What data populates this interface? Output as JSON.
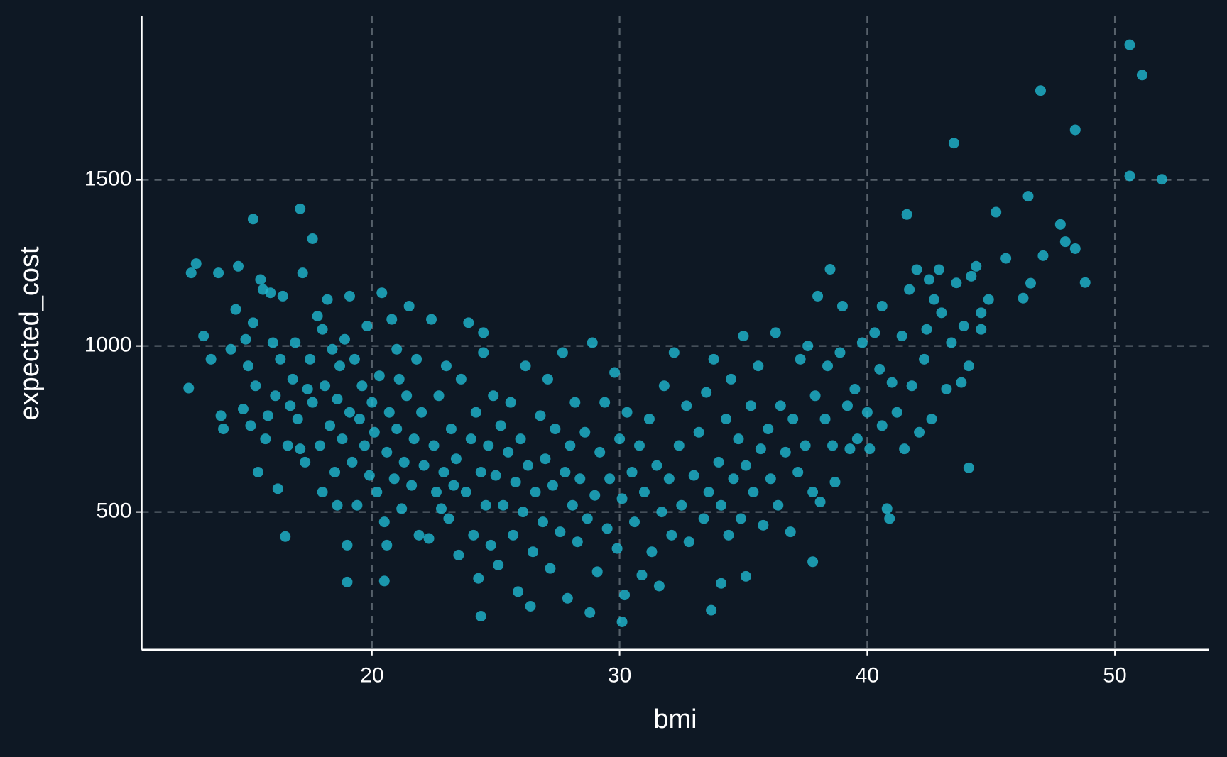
{
  "chart_data": {
    "type": "scatter",
    "x_label": "bmi",
    "y_label": "expected_cost",
    "color": "#1fb8d0",
    "grid": true,
    "xlim": [
      10.7,
      53.8
    ],
    "ylim": [
      85,
      1995
    ],
    "xticks": [
      20,
      30,
      40,
      50
    ],
    "yticks": [
      500,
      1000,
      1500
    ],
    "x": [
      50.6,
      51.1,
      47.0,
      48.4,
      43.5,
      50.6,
      51.9,
      46.5,
      41.6,
      45.2,
      47.8,
      48.0,
      48.4,
      47.1,
      45.6,
      46.6,
      48.8,
      46.3,
      44.1,
      17.1,
      15.2,
      17.6,
      12.9,
      12.7,
      12.6,
      16.5,
      19.0,
      20.5,
      24.4,
      26.4,
      30.1,
      28.8,
      33.7,
      31.6,
      34.1,
      37.8,
      35.1,
      38.5,
      13.2,
      13.5,
      13.9,
      14.0,
      14.3,
      14.5,
      14.6,
      14.8,
      15.0,
      15.2,
      15.3,
      15.4,
      15.5,
      15.7,
      15.9,
      16.0,
      16.1,
      16.2,
      16.3,
      16.4,
      15.1,
      14.9,
      15.6,
      15.8,
      13.8,
      16.6,
      16.8,
      16.9,
      17.0,
      17.2,
      17.3,
      17.5,
      17.6,
      17.8,
      17.9,
      18.0,
      18.1,
      18.2,
      18.3,
      18.4,
      18.5,
      18.6,
      18.7,
      18.8,
      18.9,
      17.4,
      16.7,
      18.0,
      17.1,
      18.6,
      19.0,
      19.1,
      19.2,
      19.3,
      19.4,
      19.5,
      19.6,
      19.7,
      19.8,
      19.9,
      20.0,
      20.1,
      20.2,
      20.3,
      20.4,
      20.5,
      20.6,
      20.7,
      20.8,
      20.9,
      21.0,
      21.1,
      21.2,
      21.3,
      21.4,
      21.5,
      21.6,
      21.7,
      21.8,
      21.9,
      19.1,
      20.6,
      21.0,
      22.0,
      22.1,
      22.3,
      22.4,
      22.5,
      22.6,
      22.7,
      22.9,
      23.0,
      23.1,
      23.2,
      23.4,
      23.5,
      23.6,
      23.8,
      23.9,
      24.0,
      24.1,
      24.2,
      24.3,
      24.4,
      24.5,
      24.6,
      24.7,
      24.8,
      24.9,
      23.3,
      22.8,
      24.5,
      25.0,
      25.1,
      25.2,
      25.3,
      25.5,
      25.6,
      25.7,
      25.8,
      25.9,
      26.0,
      26.1,
      26.2,
      26.3,
      26.5,
      26.6,
      26.8,
      26.9,
      27.0,
      27.1,
      27.2,
      27.3,
      27.4,
      27.6,
      27.7,
      27.8,
      27.9,
      28.0,
      28.1,
      28.2,
      28.3,
      28.4,
      28.6,
      28.7,
      28.9,
      29.0,
      29.1,
      29.2,
      29.4,
      29.5,
      29.6,
      29.8,
      29.9,
      30.0,
      30.1,
      30.2,
      30.3,
      30.5,
      30.6,
      30.8,
      30.9,
      31.0,
      31.2,
      31.3,
      31.5,
      31.7,
      31.8,
      32.0,
      32.1,
      32.2,
      32.4,
      32.5,
      32.7,
      32.8,
      33.0,
      33.2,
      33.4,
      33.5,
      33.6,
      33.8,
      34.0,
      34.1,
      34.3,
      34.4,
      34.5,
      34.6,
      34.8,
      34.9,
      35.0,
      35.1,
      35.3,
      35.4,
      35.6,
      35.7,
      35.8,
      36.0,
      36.1,
      36.3,
      36.4,
      36.5,
      36.7,
      36.9,
      37.0,
      37.2,
      37.3,
      37.5,
      37.6,
      37.8,
      37.9,
      38.0,
      38.1,
      38.3,
      38.4,
      38.6,
      38.7,
      38.9,
      39.0,
      39.2,
      39.3,
      39.5,
      39.6,
      39.8,
      40.0,
      40.1,
      40.3,
      40.5,
      40.6,
      40.8,
      40.9,
      41.0,
      40.6,
      41.2,
      41.4,
      41.5,
      41.7,
      41.8,
      42.0,
      42.1,
      42.3,
      42.4,
      42.6,
      42.7,
      42.9,
      43.0,
      43.2,
      43.4,
      43.6,
      43.8,
      43.9,
      44.1,
      44.2,
      44.4,
      44.6,
      44.9,
      44.6,
      42.5
    ],
    "values": [
      1907,
      1816,
      1769,
      1651,
      1611,
      1512,
      1502,
      1451,
      1396,
      1403,
      1366,
      1314,
      1293,
      1272,
      1264,
      1189,
      1191,
      1144,
      633,
      1413,
      1382,
      1323,
      1248,
      1220,
      873,
      426,
      289,
      292,
      186,
      216,
      169,
      197,
      204,
      277,
      285,
      350,
      306,
      1231,
      1030,
      960,
      790,
      750,
      990,
      1110,
      1240,
      810,
      940,
      1070,
      880,
      620,
      1200,
      720,
      1160,
      1010,
      850,
      570,
      960,
      1150,
      760,
      1020,
      1170,
      790,
      1220,
      700,
      900,
      1010,
      780,
      1220,
      650,
      960,
      830,
      1090,
      700,
      560,
      880,
      1140,
      760,
      990,
      620,
      840,
      940,
      720,
      1020,
      870,
      820,
      1050,
      690,
      520,
      400,
      800,
      650,
      960,
      520,
      780,
      880,
      700,
      1060,
      610,
      830,
      740,
      560,
      910,
      1160,
      470,
      680,
      800,
      1080,
      600,
      750,
      900,
      510,
      650,
      850,
      1120,
      580,
      720,
      960,
      430,
      1150,
      400,
      990,
      800,
      640,
      420,
      1080,
      700,
      560,
      850,
      620,
      940,
      480,
      750,
      660,
      370,
      900,
      560,
      1070,
      720,
      430,
      800,
      300,
      620,
      980,
      520,
      700,
      400,
      850,
      580,
      510,
      1040,
      610,
      340,
      760,
      520,
      680,
      830,
      430,
      590,
      260,
      720,
      500,
      940,
      640,
      380,
      560,
      790,
      470,
      660,
      900,
      330,
      580,
      750,
      440,
      980,
      620,
      240,
      700,
      520,
      830,
      410,
      600,
      740,
      480,
      1010,
      550,
      320,
      680,
      830,
      450,
      600,
      920,
      390,
      720,
      540,
      250,
      800,
      620,
      470,
      700,
      310,
      560,
      780,
      380,
      640,
      500,
      880,
      600,
      430,
      980,
      700,
      520,
      820,
      410,
      610,
      740,
      480,
      860,
      560,
      960,
      650,
      520,
      780,
      430,
      900,
      600,
      720,
      480,
      1030,
      640,
      820,
      560,
      940,
      690,
      460,
      750,
      600,
      1040,
      520,
      820,
      680,
      440,
      780,
      620,
      960,
      700,
      1000,
      560,
      850,
      1150,
      530,
      780,
      940,
      700,
      590,
      980,
      1120,
      820,
      690,
      870,
      720,
      1010,
      800,
      690,
      1040,
      930,
      760,
      510,
      480,
      890,
      1120,
      800,
      1030,
      690,
      1170,
      880,
      1230,
      740,
      960,
      1050,
      780,
      1140,
      1230,
      1100,
      870,
      1010,
      1190,
      890,
      1060,
      940,
      1210,
      1240,
      1050,
      1140,
      1100,
      1200
    ]
  }
}
